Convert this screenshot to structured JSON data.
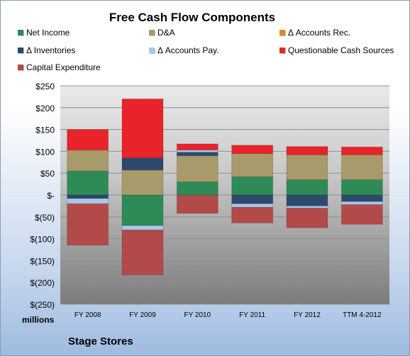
{
  "chart_data": {
    "type": "bar",
    "stacked": true,
    "title": "Free Cash Flow Components",
    "units_label": "millions",
    "company": "Stage Stores",
    "categories": [
      "FY 2008",
      "FY 2009",
      "FY 2010",
      "FY 2011",
      "FY 2012",
      "TTM 4-2012"
    ],
    "ylim": [
      -250,
      250
    ],
    "yticks": [
      250,
      200,
      150,
      100,
      50,
      0,
      -50,
      -100,
      -150,
      -200,
      -250
    ],
    "ytick_labels": [
      "$250",
      "$200",
      "$150",
      "$100",
      "$50",
      "$-",
      "$(50)",
      "$(100)",
      "$(150)",
      "$(200)",
      "$(250)"
    ],
    "grid": true,
    "legend_position": "top",
    "series": [
      {
        "name": "Net Income",
        "color": "#2e8b57",
        "values": [
          55,
          -70,
          30,
          42,
          35,
          35
        ]
      },
      {
        "name": "D&A",
        "color": "#a89a6a",
        "values": [
          48,
          57,
          60,
          53,
          57,
          57
        ]
      },
      {
        "name": "Δ Accounts Rec.",
        "color": "#e6891f",
        "values": [
          0,
          0,
          0,
          0,
          0,
          0
        ]
      },
      {
        "name": "Δ Inventories",
        "color": "#2c4a6e",
        "values": [
          -8,
          28,
          8,
          -20,
          -25,
          -15
        ]
      },
      {
        "name": "Δ Accounts Pay.",
        "color": "#a9c8e8",
        "values": [
          -12,
          -10,
          5,
          -8,
          -5,
          -7
        ]
      },
      {
        "name": "Questionable Cash Sources",
        "color": "#e8232a",
        "values": [
          47,
          135,
          14,
          19,
          19,
          18
        ]
      },
      {
        "name": "Capital Expenditure",
        "color": "#b24a4a",
        "values": [
          -95,
          -103,
          -42,
          -36,
          -45,
          -45
        ]
      }
    ]
  }
}
